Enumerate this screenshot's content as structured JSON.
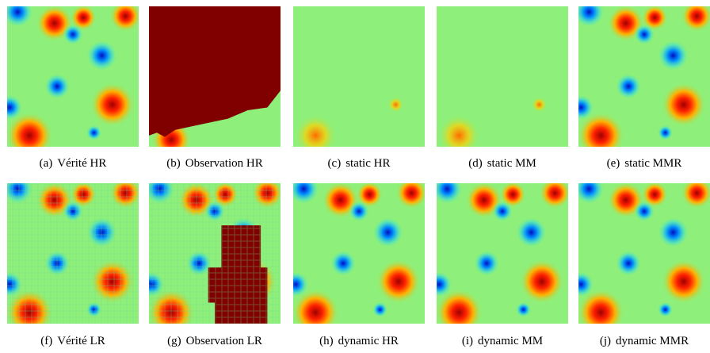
{
  "panels": [
    {
      "label": "(a)",
      "caption": "Vérité HR"
    },
    {
      "label": "(b)",
      "caption": "Observation HR"
    },
    {
      "label": "(c)",
      "caption": "static HR"
    },
    {
      "label": "(d)",
      "caption": "static MM"
    },
    {
      "label": "(e)",
      "caption": "static MMR"
    },
    {
      "label": "(f)",
      "caption": "Vérité LR"
    },
    {
      "label": "(g)",
      "caption": "Observation LR"
    },
    {
      "label": "(h)",
      "caption": "dynamic HR"
    },
    {
      "label": "(i)",
      "caption": "dynamic MM"
    },
    {
      "label": "(j)",
      "caption": "dynamic MMR"
    }
  ]
}
